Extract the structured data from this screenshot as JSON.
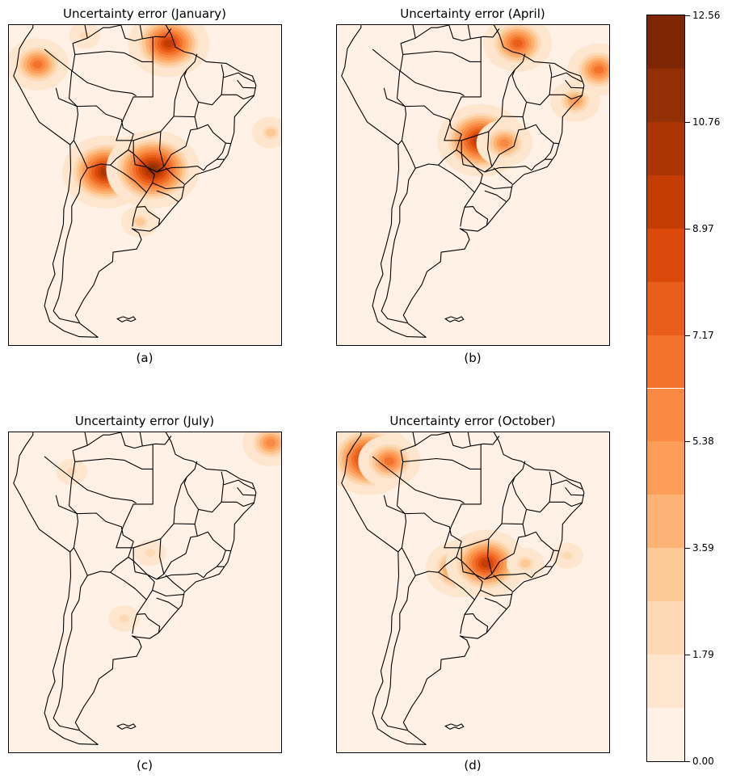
{
  "panels": [
    {
      "title": "Uncertainty error (January)",
      "caption": "(a)",
      "hotspots": [
        {
          "lon": -51.5,
          "lat": 1.0,
          "value": 9.5
        },
        {
          "lon": -76.5,
          "lat": -3.0,
          "value": 6.5
        },
        {
          "lon": -63.5,
          "lat": -23.5,
          "value": 10.5
        },
        {
          "lon": -54.5,
          "lat": -23.0,
          "value": 11.2
        },
        {
          "lon": -67.5,
          "lat": 2.5,
          "value": 2.5
        },
        {
          "lon": -32.0,
          "lat": -16.0,
          "value": 3.0
        },
        {
          "lon": -57.0,
          "lat": -33.0,
          "value": 3.5
        }
      ]
    },
    {
      "title": "Uncertainty error (April)",
      "caption": "(b)",
      "hotspots": [
        {
          "lon": -47.5,
          "lat": 1.0,
          "value": 8.0
        },
        {
          "lon": -36.5,
          "lat": -10.0,
          "value": 4.5
        },
        {
          "lon": -32.0,
          "lat": -4.0,
          "value": 6.5
        },
        {
          "lon": -54.5,
          "lat": -17.5,
          "value": 10.0
        },
        {
          "lon": -50.0,
          "lat": -18.0,
          "value": 6.0
        }
      ]
    },
    {
      "title": "Uncertainty error (July)",
      "caption": "(c)",
      "hotspots": [
        {
          "lon": -32.0,
          "lat": 2.5,
          "value": 6.0
        },
        {
          "lon": -55.0,
          "lat": -18.5,
          "value": 2.5
        },
        {
          "lon": -60.0,
          "lat": -31.0,
          "value": 2.5
        },
        {
          "lon": -70.0,
          "lat": -3.0,
          "value": 1.8
        }
      ]
    },
    {
      "title": "Uncertainty error (October)",
      "caption": "(d)",
      "hotspots": [
        {
          "lon": -76.0,
          "lat": -0.5,
          "value": 10.5
        },
        {
          "lon": -72.0,
          "lat": -1.0,
          "value": 7.0
        },
        {
          "lon": -58.5,
          "lat": -21.5,
          "value": 8.0
        },
        {
          "lon": -53.5,
          "lat": -20.5,
          "value": 9.5
        },
        {
          "lon": -46.0,
          "lat": -20.5,
          "value": 3.0
        },
        {
          "lon": -38.0,
          "lat": -19.0,
          "value": 2.5
        }
      ]
    }
  ],
  "colorbar": {
    "min": 0,
    "max": 12.56,
    "levels": 14,
    "ticks": [
      "0.00",
      "1.79",
      "3.59",
      "5.38",
      "7.17",
      "8.97",
      "10.76",
      "12.56"
    ],
    "colors": [
      "#fff1e5",
      "#fee6ce",
      "#fdd9b6",
      "#fdc997",
      "#fdb376",
      "#fd9e58",
      "#f98a43",
      "#f3722c",
      "#e95e1a",
      "#db4a0a",
      "#c43d03",
      "#ab3503",
      "#932f04",
      "#7f2704"
    ]
  },
  "map_extent": {
    "lon_min": -82,
    "lon_max": -30,
    "lat_min": -56.5,
    "lat_max": 4.5
  },
  "coastline": [
    [
      -80.5,
      -3.5
    ],
    [
      -81.1,
      -5.2
    ],
    [
      -79.8,
      -7.5
    ],
    [
      -78.2,
      -10.5
    ],
    [
      -76.2,
      -14.0
    ],
    [
      -70.3,
      -18.3
    ],
    [
      -70.2,
      -23.0
    ],
    [
      -70.6,
      -27.0
    ],
    [
      -71.5,
      -30.5
    ],
    [
      -71.6,
      -33.5
    ],
    [
      -72.6,
      -37.5
    ],
    [
      -73.6,
      -41.0
    ],
    [
      -73.2,
      -43.0
    ],
    [
      -74.5,
      -46.0
    ],
    [
      -75.2,
      -49.0
    ],
    [
      -74.2,
      -52.0
    ],
    [
      -71.5,
      -53.8
    ],
    [
      -68.6,
      -54.9
    ],
    [
      -65.0,
      -55.0
    ],
    [
      -68.4,
      -52.4
    ],
    [
      -69.3,
      -50.8
    ],
    [
      -67.7,
      -47.8
    ],
    [
      -65.8,
      -45.0
    ],
    [
      -64.8,
      -42.5
    ],
    [
      -62.2,
      -40.6
    ],
    [
      -62.1,
      -38.8
    ],
    [
      -57.6,
      -38.2
    ],
    [
      -56.7,
      -36.4
    ],
    [
      -57.2,
      -35.1
    ],
    [
      -58.5,
      -34.3
    ],
    [
      -57.7,
      -34.5
    ],
    [
      -55.1,
      -34.8
    ],
    [
      -53.4,
      -33.7
    ],
    [
      -51.2,
      -31.0
    ],
    [
      -49.0,
      -28.5
    ],
    [
      -48.5,
      -26.0
    ],
    [
      -46.3,
      -24.0
    ],
    [
      -43.1,
      -23.0
    ],
    [
      -41.8,
      -22.5
    ],
    [
      -40.2,
      -20.2
    ],
    [
      -39.0,
      -16.0
    ],
    [
      -38.9,
      -13.0
    ],
    [
      -37.2,
      -11.0
    ],
    [
      -35.2,
      -9.0
    ],
    [
      -34.8,
      -7.0
    ],
    [
      -35.5,
      -5.2
    ],
    [
      -37.8,
      -4.4
    ],
    [
      -40.5,
      -2.8
    ],
    [
      -44.3,
      -2.5
    ],
    [
      -46.8,
      -1.0
    ],
    [
      -48.5,
      -0.6
    ],
    [
      -50.2,
      0.3
    ],
    [
      -51.0,
      2.7
    ],
    [
      -52.0,
      4.5
    ],
    [
      -55.0,
      5.9
    ],
    [
      -57.2,
      5.9
    ],
    [
      -59.5,
      8.0
    ],
    [
      -61.0,
      9.0
    ],
    [
      -62.8,
      10.6
    ],
    [
      -66.0,
      10.6
    ],
    [
      -69.5,
      11.5
    ],
    [
      -71.8,
      12.2
    ],
    [
      -73.2,
      11.2
    ],
    [
      -75.2,
      10.6
    ],
    [
      -76.8,
      8.6
    ],
    [
      -77.4,
      7.0
    ],
    [
      -77.4,
      4.0
    ],
    [
      -78.8,
      2.0
    ],
    [
      -80.0,
      0.0
    ],
    [
      -80.5,
      -3.5
    ]
  ],
  "borders": [
    [
      [
        -75.2,
        -0.1
      ],
      [
        -73.5,
        -1.5
      ],
      [
        -70.0,
        -4.2
      ],
      [
        -70.5,
        -9.5
      ],
      [
        -69.0,
        -11.0
      ],
      [
        -68.8,
        -12.5
      ],
      [
        -69.6,
        -17.5
      ],
      [
        -70.3,
        -18.3
      ]
    ],
    [
      [
        -69.6,
        -17.5
      ],
      [
        -68.0,
        -20.5
      ],
      [
        -67.0,
        -22.8
      ],
      [
        -68.3,
        -25.0
      ],
      [
        -68.6,
        -27.5
      ],
      [
        -70.0,
        -30.0
      ],
      [
        -70.0,
        -33.0
      ],
      [
        -71.0,
        -36.5
      ],
      [
        -71.6,
        -40.0
      ],
      [
        -71.8,
        -44.0
      ],
      [
        -72.5,
        -47.5
      ],
      [
        -73.5,
        -50.0
      ],
      [
        -72.3,
        -51.5
      ],
      [
        -68.6,
        -52.3
      ]
    ],
    [
      [
        -67.0,
        -22.8
      ],
      [
        -64.5,
        -22.0
      ],
      [
        -62.6,
        -22.2
      ],
      [
        -61.5,
        -21.0
      ],
      [
        -59.2,
        -19.3
      ],
      [
        -58.2,
        -16.3
      ],
      [
        -60.2,
        -15.1
      ],
      [
        -60.5,
        -13.5
      ],
      [
        -63.5,
        -12.5
      ],
      [
        -65.3,
        -10.9
      ],
      [
        -68.5,
        -11.0
      ],
      [
        -69.0,
        -11.0
      ]
    ],
    [
      [
        -62.6,
        -22.2
      ],
      [
        -60.0,
        -23.8
      ],
      [
        -57.9,
        -25.3
      ],
      [
        -55.7,
        -27.4
      ],
      [
        -54.6,
        -25.6
      ],
      [
        -54.2,
        -24.0
      ],
      [
        -55.6,
        -22.6
      ],
      [
        -57.9,
        -22.1
      ],
      [
        -58.2,
        -20.0
      ],
      [
        -59.2,
        -19.3
      ]
    ],
    [
      [
        -53.4,
        -33.7
      ],
      [
        -53.2,
        -32.5
      ],
      [
        -55.4,
        -31.0
      ],
      [
        -56.0,
        -30.1
      ],
      [
        -57.6,
        -30.2
      ],
      [
        -58.2,
        -32.5
      ],
      [
        -58.4,
        -33.9
      ]
    ],
    [
      [
        -55.7,
        -27.4
      ],
      [
        -57.6,
        -30.2
      ]
    ],
    [
      [
        -69.9,
        -4.3
      ],
      [
        -69.4,
        -1.1
      ],
      [
        -69.8,
        1.0
      ],
      [
        -67.0,
        2.0
      ],
      [
        -67.3,
        3.5
      ],
      [
        -67.8,
        6.2
      ]
    ],
    [
      [
        -67.0,
        2.0
      ],
      [
        -64.0,
        4.0
      ],
      [
        -62.8,
        4.0
      ],
      [
        -60.6,
        4.5
      ],
      [
        -60.2,
        5.2
      ],
      [
        -61.4,
        5.9
      ],
      [
        -61.0,
        8.3
      ]
    ],
    [
      [
        -60.6,
        4.5
      ],
      [
        -59.8,
        2.0
      ],
      [
        -58.0,
        1.5
      ],
      [
        -56.5,
        1.9
      ],
      [
        -57.2,
        5.9
      ]
    ],
    [
      [
        -56.5,
        1.9
      ],
      [
        -54.0,
        2.3
      ],
      [
        -52.2,
        2.2
      ],
      [
        -51.0,
        3.8
      ]
    ],
    [
      [
        -69.9,
        -4.3
      ],
      [
        -67.0,
        -6.5
      ],
      [
        -62.5,
        -8.0
      ],
      [
        -58.5,
        -8.5
      ],
      [
        -57.7,
        -9.0
      ]
    ],
    [
      [
        -73.0,
        -7.5
      ],
      [
        -72.5,
        -9.5
      ],
      [
        -69.0,
        -11.0
      ]
    ],
    [
      [
        -69.4,
        -1.1
      ],
      [
        -63.0,
        -0.5
      ],
      [
        -60.0,
        -0.8
      ],
      [
        -56.6,
        -2.5
      ],
      [
        -54.5,
        -2.5
      ]
    ],
    [
      [
        -54.5,
        2.2
      ],
      [
        -54.5,
        -2.5
      ],
      [
        -54.5,
        -9.2
      ],
      [
        -58.2,
        -9.2
      ],
      [
        -60.2,
        -13.5
      ],
      [
        -61.5,
        -17.5
      ],
      [
        -58.2,
        -17.5
      ],
      [
        -53.0,
        -15.8
      ],
      [
        -50.5,
        -12.9
      ],
      [
        -50.3,
        -9.8
      ],
      [
        -49.1,
        -5.5
      ],
      [
        -48.0,
        -4.0
      ],
      [
        -46.5,
        -2.5
      ],
      [
        -46.1,
        -1.0
      ]
    ],
    [
      [
        -50.5,
        -12.9
      ],
      [
        -46.5,
        -13.0
      ],
      [
        -45.8,
        -10.2
      ],
      [
        -47.8,
        -7.2
      ],
      [
        -48.5,
        -5.2
      ],
      [
        -48.0,
        -4.0
      ]
    ],
    [
      [
        -45.8,
        -10.2
      ],
      [
        -43.2,
        -10.7
      ],
      [
        -41.4,
        -8.8
      ],
      [
        -41.0,
        -4.9
      ],
      [
        -41.4,
        -3.0
      ]
    ],
    [
      [
        -41.4,
        -8.8
      ],
      [
        -38.5,
        -8.8
      ],
      [
        -37.2,
        -9.6
      ],
      [
        -35.2,
        -8.9
      ]
    ],
    [
      [
        -41.0,
        -5.5
      ],
      [
        -38.2,
        -4.6
      ],
      [
        -37.2,
        -5.3
      ],
      [
        -35.2,
        -6.3
      ]
    ],
    [
      [
        -38.4,
        -6.0
      ],
      [
        -37.3,
        -7.4
      ],
      [
        -34.8,
        -7.5
      ]
    ],
    [
      [
        -53.0,
        -15.8
      ],
      [
        -53.2,
        -19.2
      ],
      [
        -52.4,
        -22.5
      ],
      [
        -51.0,
        -20.2
      ],
      [
        -48.2,
        -18.6
      ],
      [
        -47.3,
        -15.5
      ],
      [
        -46.0,
        -15.3
      ],
      [
        -46.5,
        -13.0
      ]
    ],
    [
      [
        -58.2,
        -17.5
      ],
      [
        -58.2,
        -20.0
      ],
      [
        -55.6,
        -22.6
      ],
      [
        -53.8,
        -23.5
      ],
      [
        -52.4,
        -22.5
      ]
    ],
    [
      [
        -53.8,
        -23.5
      ],
      [
        -51.0,
        -22.7
      ],
      [
        -48.0,
        -22.6
      ],
      [
        -46.0,
        -22.4
      ],
      [
        -44.8,
        -23.2
      ]
    ],
    [
      [
        -44.8,
        -23.2
      ],
      [
        -44.2,
        -22.4
      ],
      [
        -42.3,
        -21.1
      ],
      [
        -40.9,
        -21.1
      ]
    ],
    [
      [
        -42.3,
        -21.1
      ],
      [
        -41.2,
        -19.8
      ],
      [
        -40.6,
        -18.0
      ]
    ],
    [
      [
        -46.0,
        -15.3
      ],
      [
        -44.0,
        -14.5
      ],
      [
        -43.0,
        -16.0
      ],
      [
        -40.6,
        -18.0
      ],
      [
        -39.6,
        -18.1
      ]
    ],
    [
      [
        -54.6,
        -25.6
      ],
      [
        -52.0,
        -26.7
      ],
      [
        -48.6,
        -26.4
      ]
    ],
    [
      [
        -53.8,
        -27.1
      ],
      [
        -51.5,
        -27.9
      ],
      [
        -49.6,
        -29.2
      ]
    ],
    [
      [
        -48.5,
        -25.8
      ],
      [
        -50.5,
        -24.2
      ],
      [
        -52.1,
        -22.7
      ]
    ]
  ],
  "islands": [
    [
      [
        -61.3,
        -51.5
      ],
      [
        -60.2,
        -51.1
      ],
      [
        -59.1,
        -51.5
      ],
      [
        -58.2,
        -51.1
      ],
      [
        -57.8,
        -51.6
      ],
      [
        -58.7,
        -52.0
      ],
      [
        -59.5,
        -51.7
      ],
      [
        -60.4,
        -52.1
      ],
      [
        -61.3,
        -51.5
      ]
    ]
  ]
}
